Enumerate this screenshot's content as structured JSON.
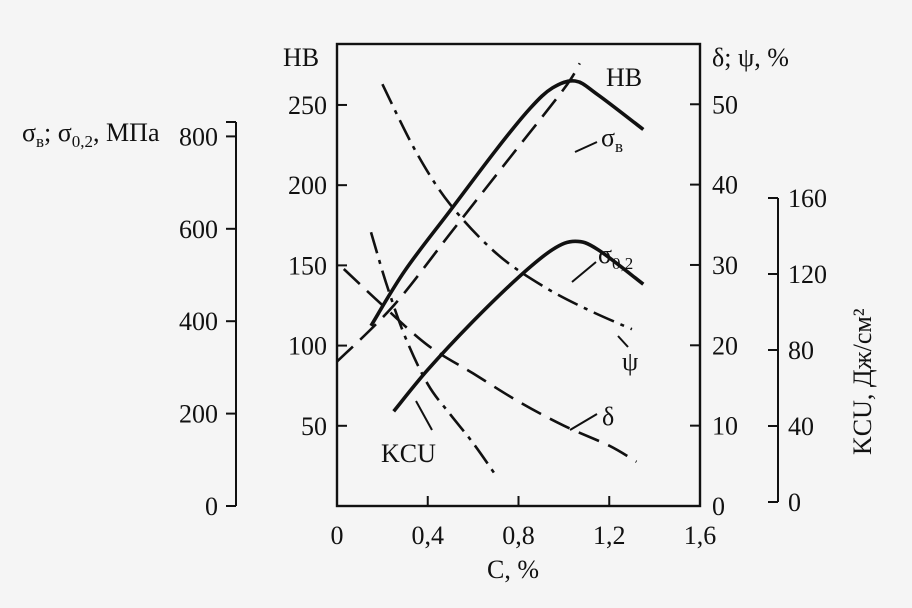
{
  "chart_data": {
    "type": "line",
    "title": "",
    "x": {
      "label": "C, %",
      "ticks": [
        "0",
        "0,4",
        "0,8",
        "1,2",
        "1,6"
      ],
      "tick_values": [
        0,
        0.4,
        0.8,
        1.2,
        1.6
      ],
      "range": [
        0,
        1.6
      ]
    },
    "axes": {
      "hb": {
        "label": "HB",
        "ticks": [
          "50",
          "100",
          "150",
          "200",
          "250"
        ],
        "tick_values": [
          50,
          100,
          150,
          200,
          250
        ],
        "range": [
          0,
          288
        ]
      },
      "sigma": {
        "label_main": "σв; σ0,2, МПа",
        "label_parts": [
          "σ",
          "в",
          "; σ",
          "0,2",
          ", МПа"
        ],
        "ticks": [
          "0",
          "200",
          "400",
          "600",
          "800"
        ],
        "tick_values": [
          0,
          200,
          400,
          600,
          800
        ],
        "range": [
          0,
          1000
        ]
      },
      "percent": {
        "label": "δ; ψ, %",
        "ticks": [
          "0",
          "10",
          "20",
          "30",
          "40",
          "50"
        ],
        "tick_values": [
          0,
          10,
          20,
          30,
          40,
          50
        ],
        "range": [
          0,
          57.5
        ]
      },
      "kcu": {
        "label": "KCU, Дж/см²",
        "ticks": [
          "0",
          "40",
          "80",
          "120",
          "160"
        ],
        "tick_values": [
          0,
          40,
          80,
          120,
          160
        ],
        "range": [
          0,
          160
        ]
      }
    },
    "series": [
      {
        "name": "HB",
        "axis": "hb",
        "dash": "dashed",
        "points": [
          [
            0.0,
            90
          ],
          [
            0.25,
            125
          ],
          [
            0.5,
            170
          ],
          [
            0.75,
            215
          ],
          [
            1.0,
            260
          ],
          [
            1.07,
            276
          ]
        ]
      },
      {
        "name": "σв",
        "axis": "sigma",
        "dash": "solid",
        "points": [
          [
            0.15,
            390
          ],
          [
            0.3,
            510
          ],
          [
            0.5,
            640
          ],
          [
            0.7,
            770
          ],
          [
            0.85,
            860
          ],
          [
            0.95,
            905
          ],
          [
            1.05,
            920
          ],
          [
            1.15,
            890
          ],
          [
            1.35,
            815
          ]
        ]
      },
      {
        "name": "σ0,2",
        "axis": "sigma",
        "dash": "solid",
        "points": [
          [
            0.25,
            205
          ],
          [
            0.4,
            295
          ],
          [
            0.6,
            400
          ],
          [
            0.8,
            495
          ],
          [
            0.95,
            555
          ],
          [
            1.05,
            573
          ],
          [
            1.15,
            555
          ],
          [
            1.35,
            480
          ]
        ]
      },
      {
        "name": "ψ",
        "axis": "percent",
        "dash": "dashdot",
        "points": [
          [
            0.2,
            52.5
          ],
          [
            0.35,
            44
          ],
          [
            0.5,
            37.5
          ],
          [
            0.7,
            31.5
          ],
          [
            0.9,
            27.5
          ],
          [
            1.1,
            24.5
          ],
          [
            1.3,
            22
          ]
        ]
      },
      {
        "name": "δ",
        "axis": "percent",
        "dash": "dashed",
        "points": [
          [
            0.03,
            29.5
          ],
          [
            0.2,
            25
          ],
          [
            0.4,
            20
          ],
          [
            0.6,
            16.5
          ],
          [
            0.8,
            13
          ],
          [
            1.0,
            10
          ],
          [
            1.2,
            7.5
          ],
          [
            1.32,
            5.5
          ]
        ]
      },
      {
        "name": "KCU",
        "axis": "kcu",
        "dash": "dashdot",
        "points": [
          [
            0.15,
            142
          ],
          [
            0.22,
            114
          ],
          [
            0.3,
            87
          ],
          [
            0.4,
            62
          ],
          [
            0.5,
            46
          ],
          [
            0.6,
            31
          ],
          [
            0.7,
            14
          ]
        ]
      }
    ],
    "series_labels": [
      "HB",
      "σ",
      "в",
      "σ",
      "0,2",
      "ψ",
      "δ",
      "KCU"
    ],
    "grid": false,
    "legend": "none"
  }
}
